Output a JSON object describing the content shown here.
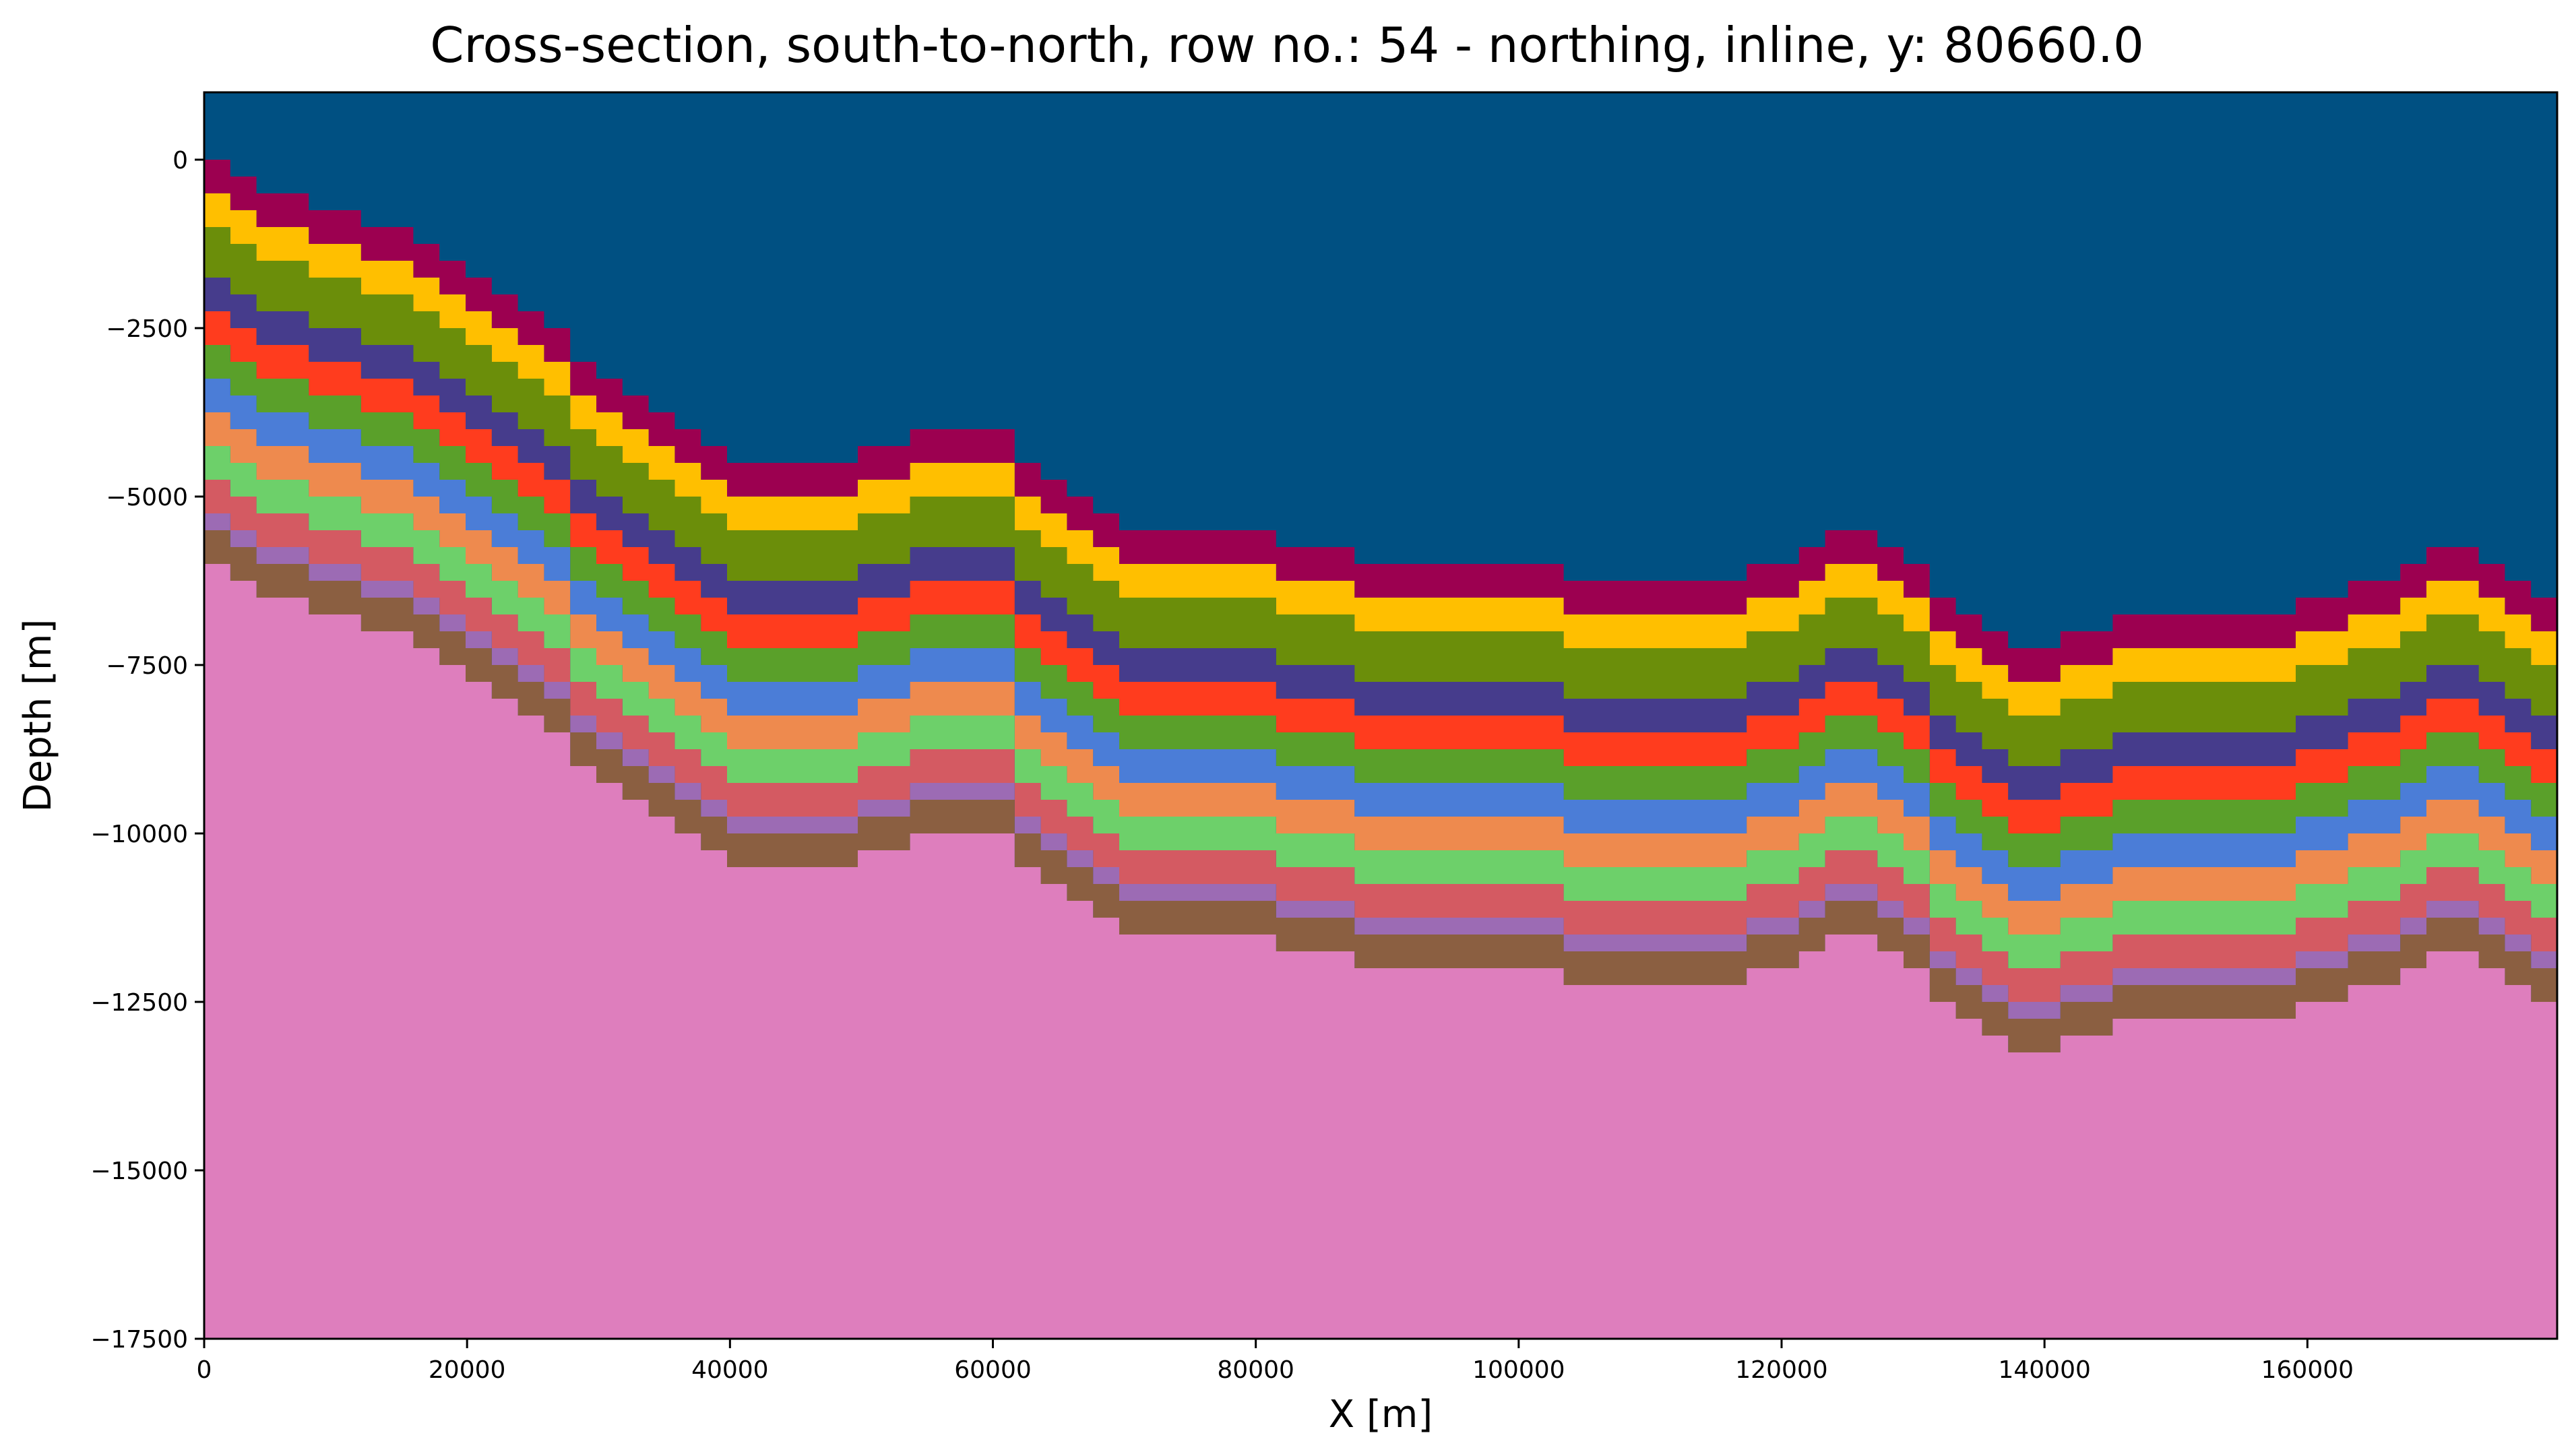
{
  "chart_data": {
    "type": "area",
    "title": "Cross-section, south-to-north, row no.: 54 - northing, inline, y: 80660.0",
    "xlabel": "X [m]",
    "ylabel": "Depth [m]",
    "xlim": [
      0,
      179000
    ],
    "ylim": [
      -17500,
      1000
    ],
    "grid": false,
    "legend": "none",
    "x_ticks": [
      0,
      20000,
      40000,
      60000,
      80000,
      100000,
      120000,
      140000,
      160000
    ],
    "x_tick_labels": [
      "0",
      "20000",
      "40000",
      "60000",
      "80000",
      "100000",
      "120000",
      "140000",
      "160000"
    ],
    "y_ticks": [
      0,
      -2500,
      -5000,
      -7500,
      -10000,
      -12500,
      -15000,
      -17500
    ],
    "y_tick_labels": [
      "0",
      "−2500",
      "−5000",
      "−7500",
      "−10000",
      "−12500",
      "−15000",
      "−17500"
    ],
    "background_color": "#005082",
    "basement_color": "#de7ebd",
    "layer_colors": [
      "#9c0050",
      "#ffbf00",
      "#6b8e0a",
      "#463c8c",
      "#ff3c1e",
      "#5aa02a",
      "#4b7dd7",
      "#ee8a4e",
      "#6dd06a",
      "#d45a62",
      "#9c6bb4",
      "#8b5f41"
    ],
    "top_surface": {
      "x": [
        0,
        5000,
        10000,
        15000,
        20000,
        25000,
        30000,
        35000,
        40000,
        45000,
        50000,
        55000,
        60000,
        65000,
        70000,
        75000,
        80000,
        85000,
        90000,
        95000,
        100000,
        105000,
        110000,
        115000,
        120000,
        123000,
        126000,
        129000,
        133000,
        137000,
        140000,
        143000,
        147000,
        152000,
        157000,
        162000,
        166000,
        169000,
        172000,
        175000,
        179000
      ],
      "y": [
        0,
        -400,
        -700,
        -1000,
        -1500,
        -2300,
        -3100,
        -3800,
        -4400,
        -4400,
        -4400,
        -4100,
        -4000,
        -4900,
        -5400,
        -5600,
        -5600,
        -5700,
        -6000,
        -6000,
        -6000,
        -6200,
        -6200,
        -6200,
        -6000,
        -5700,
        -5500,
        -5900,
        -6500,
        -7200,
        -7300,
        -7000,
        -6800,
        -6700,
        -6800,
        -6500,
        -6200,
        -5800,
        -5700,
        -6200,
        -6700
      ]
    },
    "layer_thickness": [
      500,
      600,
      600,
      600,
      500,
      500,
      400,
      500,
      500,
      450,
      450,
      400
    ],
    "model_bottom": -17500
  }
}
